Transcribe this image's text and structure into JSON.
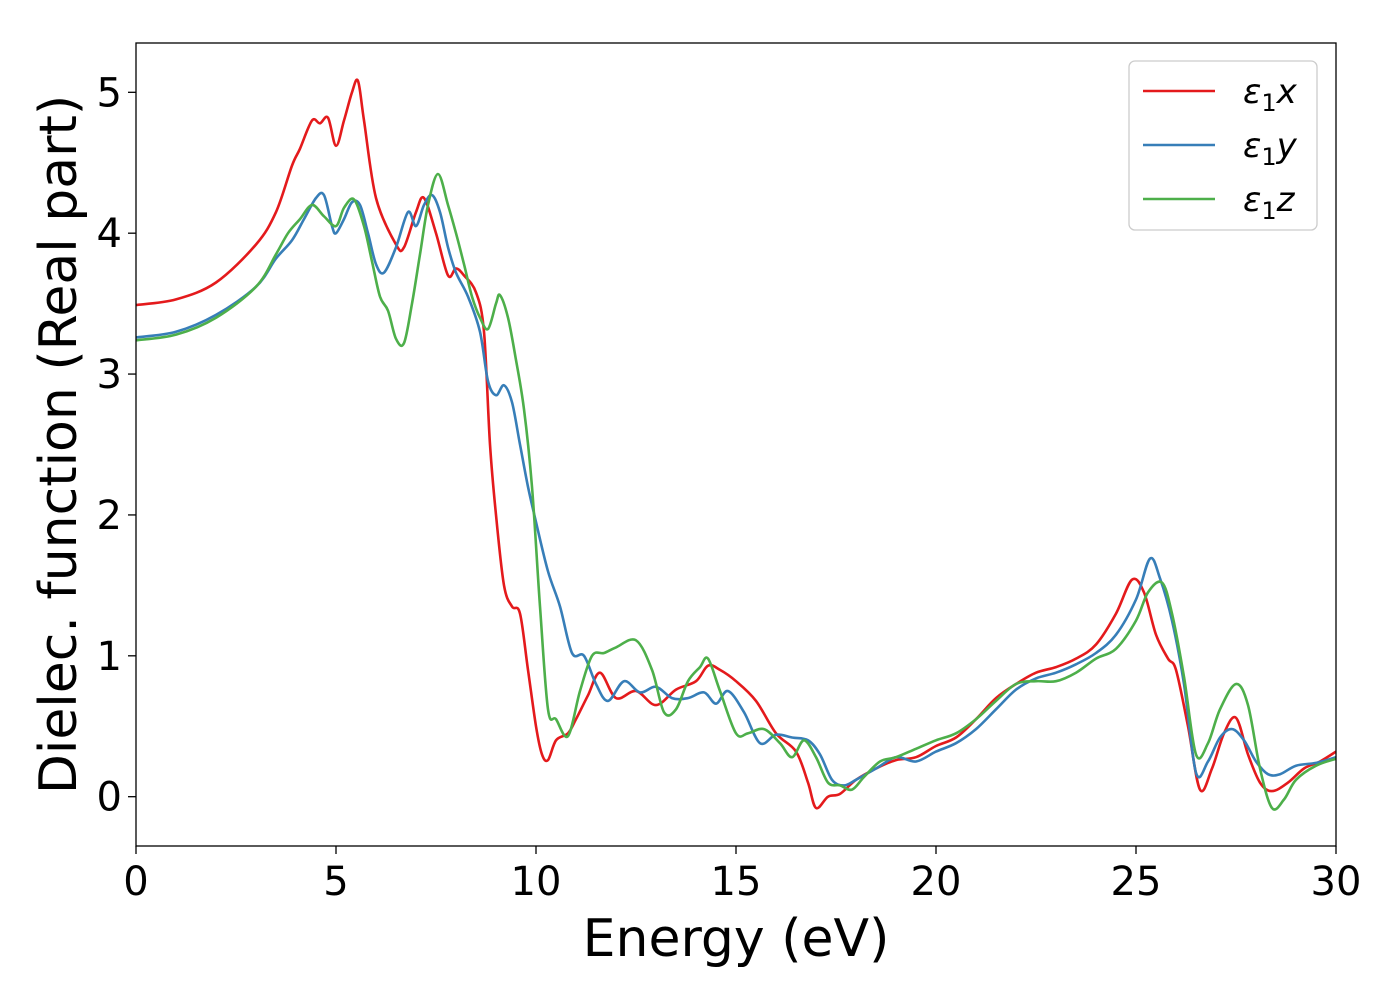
{
  "chart_data": {
    "type": "line",
    "xlabel": "Energy (eV)",
    "ylabel": "Dielec. function (Real part)",
    "xlim": [
      0,
      30
    ],
    "ylim": [
      -0.35,
      5.35
    ],
    "xticks": [
      0,
      5,
      10,
      15,
      20,
      25,
      30
    ],
    "yticks": [
      0,
      1,
      2,
      3,
      4,
      5
    ],
    "grid": false,
    "legend_position": "top-right",
    "series": [
      {
        "name": "ε1x",
        "legend": {
          "base": "ε",
          "sub": "1",
          "tail": "x"
        },
        "color": "#e41a1c",
        "x": [
          0,
          1,
          2,
          3,
          3.5,
          3.9,
          4.1,
          4.4,
          4.6,
          4.8,
          5.0,
          5.2,
          5.4,
          5.55,
          5.7,
          6.0,
          6.5,
          6.7,
          7.0,
          7.2,
          7.5,
          7.8,
          8.0,
          8.2,
          8.5,
          8.7,
          8.85,
          9.0,
          9.2,
          9.4,
          9.6,
          9.8,
          10.0,
          10.15,
          10.3,
          10.5,
          10.8,
          11.0,
          11.3,
          11.6,
          12.0,
          12.5,
          13.0,
          13.5,
          14.0,
          14.3,
          14.6,
          15.0,
          15.5,
          16.0,
          16.5,
          16.8,
          17.0,
          17.3,
          17.6,
          18.0,
          18.5,
          19.0,
          19.5,
          20.0,
          20.5,
          21.0,
          21.5,
          22.0,
          22.5,
          23.0,
          23.5,
          24.0,
          24.5,
          24.9,
          25.2,
          25.5,
          25.8,
          26.0,
          26.3,
          26.6,
          26.9,
          27.2,
          27.5,
          27.8,
          28.1,
          28.4,
          28.8,
          29.2,
          29.6,
          30.0
        ],
        "y": [
          3.49,
          3.53,
          3.65,
          3.92,
          4.15,
          4.48,
          4.6,
          4.8,
          4.78,
          4.82,
          4.62,
          4.8,
          5.0,
          5.08,
          4.8,
          4.25,
          3.92,
          3.9,
          4.15,
          4.25,
          4.0,
          3.7,
          3.75,
          3.7,
          3.58,
          3.3,
          2.5,
          2.0,
          1.5,
          1.35,
          1.3,
          0.9,
          0.5,
          0.3,
          0.26,
          0.4,
          0.45,
          0.55,
          0.72,
          0.88,
          0.7,
          0.75,
          0.65,
          0.76,
          0.82,
          0.93,
          0.9,
          0.82,
          0.68,
          0.45,
          0.32,
          0.1,
          -0.08,
          0.0,
          0.02,
          0.12,
          0.2,
          0.26,
          0.28,
          0.36,
          0.42,
          0.55,
          0.7,
          0.8,
          0.88,
          0.92,
          0.98,
          1.08,
          1.3,
          1.54,
          1.45,
          1.15,
          0.98,
          0.9,
          0.5,
          0.05,
          0.2,
          0.45,
          0.56,
          0.3,
          0.1,
          0.04,
          0.1,
          0.2,
          0.25,
          0.32
        ]
      },
      {
        "name": "ε1y",
        "legend": {
          "base": "ε",
          "sub": "1",
          "tail": "y"
        },
        "color": "#377eb8",
        "x": [
          0,
          1,
          2,
          3,
          3.5,
          3.9,
          4.2,
          4.5,
          4.7,
          4.9,
          5.0,
          5.2,
          5.4,
          5.6,
          5.8,
          6.0,
          6.2,
          6.5,
          6.8,
          7.0,
          7.2,
          7.4,
          7.6,
          7.8,
          8.0,
          8.3,
          8.6,
          8.8,
          9.0,
          9.2,
          9.4,
          9.6,
          9.8,
          10.0,
          10.3,
          10.6,
          10.9,
          11.2,
          11.5,
          11.8,
          12.2,
          12.6,
          13.0,
          13.4,
          13.8,
          14.2,
          14.5,
          14.8,
          15.2,
          15.6,
          16.0,
          16.4,
          16.8,
          17.1,
          17.4,
          17.7,
          18.0,
          18.5,
          19.0,
          19.5,
          20.0,
          20.5,
          21.0,
          21.5,
          22.0,
          22.5,
          23.0,
          23.5,
          24.0,
          24.5,
          25.0,
          25.35,
          25.6,
          25.9,
          26.2,
          26.5,
          26.8,
          27.1,
          27.4,
          27.7,
          28.0,
          28.3,
          28.6,
          29.0,
          29.5,
          30.0
        ],
        "y": [
          3.26,
          3.3,
          3.42,
          3.62,
          3.82,
          3.95,
          4.1,
          4.25,
          4.27,
          4.05,
          4.0,
          4.1,
          4.22,
          4.2,
          4.0,
          3.78,
          3.72,
          3.9,
          4.15,
          4.05,
          4.2,
          4.27,
          4.15,
          3.9,
          3.72,
          3.55,
          3.3,
          2.95,
          2.85,
          2.92,
          2.8,
          2.5,
          2.2,
          1.95,
          1.6,
          1.35,
          1.02,
          1.0,
          0.8,
          0.68,
          0.82,
          0.74,
          0.78,
          0.7,
          0.7,
          0.74,
          0.66,
          0.75,
          0.6,
          0.38,
          0.44,
          0.42,
          0.4,
          0.3,
          0.12,
          0.08,
          0.12,
          0.2,
          0.28,
          0.25,
          0.32,
          0.38,
          0.48,
          0.62,
          0.76,
          0.84,
          0.88,
          0.94,
          1.02,
          1.15,
          1.4,
          1.69,
          1.55,
          1.25,
          0.8,
          0.17,
          0.25,
          0.42,
          0.48,
          0.4,
          0.25,
          0.16,
          0.16,
          0.22,
          0.24,
          0.28
        ]
      },
      {
        "name": "ε1z",
        "legend": {
          "base": "ε",
          "sub": "1",
          "tail": "z"
        },
        "color": "#4daf4a",
        "x": [
          0,
          1,
          2,
          3,
          3.5,
          3.8,
          4.1,
          4.4,
          4.7,
          5.0,
          5.2,
          5.45,
          5.7,
          5.9,
          6.1,
          6.3,
          6.5,
          6.7,
          6.9,
          7.1,
          7.3,
          7.55,
          7.8,
          8.0,
          8.2,
          8.4,
          8.6,
          8.8,
          9.0,
          9.1,
          9.3,
          9.5,
          9.7,
          9.9,
          10.1,
          10.3,
          10.5,
          10.8,
          11.1,
          11.4,
          11.7,
          12.0,
          12.5,
          12.9,
          13.2,
          13.5,
          13.8,
          14.1,
          14.3,
          14.6,
          15.0,
          15.3,
          15.7,
          16.1,
          16.4,
          16.7,
          17.0,
          17.3,
          17.6,
          17.9,
          18.2,
          18.6,
          19.0,
          19.5,
          20.0,
          20.5,
          21.0,
          21.5,
          22.0,
          22.5,
          23.0,
          23.5,
          24.0,
          24.5,
          25.0,
          25.3,
          25.65,
          25.9,
          26.2,
          26.5,
          26.8,
          27.1,
          27.5,
          27.8,
          28.1,
          28.4,
          28.7,
          29.0,
          29.5,
          30.0
        ],
        "y": [
          3.24,
          3.28,
          3.4,
          3.62,
          3.85,
          4.0,
          4.1,
          4.2,
          4.12,
          4.05,
          4.18,
          4.24,
          4.05,
          3.8,
          3.55,
          3.45,
          3.25,
          3.22,
          3.5,
          3.85,
          4.2,
          4.42,
          4.2,
          4.0,
          3.78,
          3.55,
          3.4,
          3.32,
          3.5,
          3.56,
          3.4,
          3.1,
          2.75,
          2.2,
          1.35,
          0.62,
          0.55,
          0.43,
          0.75,
          1.0,
          1.02,
          1.06,
          1.11,
          0.9,
          0.6,
          0.62,
          0.82,
          0.92,
          0.98,
          0.75,
          0.45,
          0.45,
          0.48,
          0.38,
          0.28,
          0.4,
          0.28,
          0.1,
          0.08,
          0.05,
          0.14,
          0.25,
          0.28,
          0.34,
          0.4,
          0.45,
          0.55,
          0.68,
          0.8,
          0.82,
          0.82,
          0.88,
          0.98,
          1.05,
          1.25,
          1.45,
          1.52,
          1.3,
          0.85,
          0.3,
          0.38,
          0.62,
          0.8,
          0.65,
          0.2,
          -0.08,
          -0.02,
          0.12,
          0.22,
          0.27
        ]
      }
    ]
  }
}
